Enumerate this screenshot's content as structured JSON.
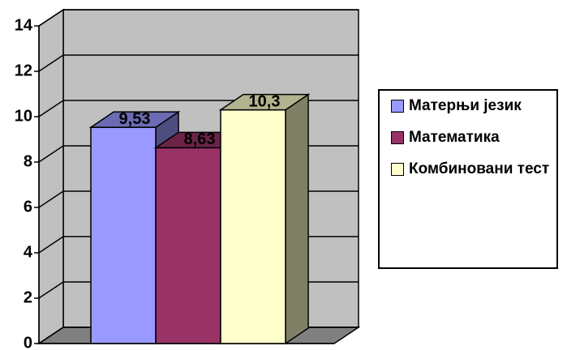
{
  "chart_data": {
    "type": "bar",
    "categories": [
      null
    ],
    "series": [
      {
        "name": "Матерњи језик",
        "color": "#9999ff",
        "values": [
          9.53
        ],
        "value_labels": [
          "9,53"
        ]
      },
      {
        "name": "Математика",
        "color": "#993366",
        "values": [
          8.63
        ],
        "value_labels": [
          "8,63"
        ]
      },
      {
        "name": "Комбиновани тест",
        "color": "#ffffcc",
        "values": [
          10.3
        ],
        "value_labels": [
          "10,3"
        ]
      }
    ],
    "ylim": [
      0,
      14
    ],
    "yticks": [
      0,
      2,
      4,
      6,
      8,
      10,
      12,
      14
    ],
    "grid": true,
    "legend": "right"
  }
}
